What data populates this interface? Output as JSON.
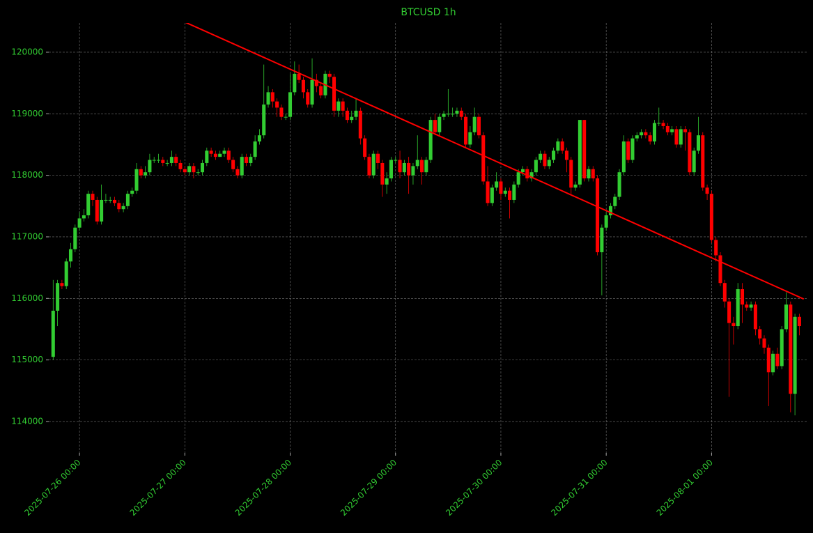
{
  "chart_data": {
    "type": "candlestick",
    "title": "BTCUSD 1h",
    "x": [
      "2025-07-25 18:00",
      "2025-07-25 19:00",
      "2025-07-25 20:00",
      "2025-07-25 21:00",
      "2025-07-25 22:00",
      "2025-07-25 23:00",
      "2025-07-26 00:00",
      "2025-07-26 01:00",
      "2025-07-26 02:00",
      "2025-07-26 03:00",
      "2025-07-26 04:00",
      "2025-07-26 05:00",
      "2025-07-26 06:00",
      "2025-07-26 07:00",
      "2025-07-26 08:00",
      "2025-07-26 09:00",
      "2025-07-26 10:00",
      "2025-07-26 11:00",
      "2025-07-26 12:00",
      "2025-07-26 13:00",
      "2025-07-26 14:00",
      "2025-07-26 15:00",
      "2025-07-26 16:00",
      "2025-07-26 17:00",
      "2025-07-26 18:00",
      "2025-07-26 19:00",
      "2025-07-26 20:00",
      "2025-07-26 21:00",
      "2025-07-26 22:00",
      "2025-07-26 23:00",
      "2025-07-27 00:00",
      "2025-07-27 01:00",
      "2025-07-27 02:00",
      "2025-07-27 03:00",
      "2025-07-27 04:00",
      "2025-07-27 05:00",
      "2025-07-27 06:00",
      "2025-07-27 07:00",
      "2025-07-27 08:00",
      "2025-07-27 09:00",
      "2025-07-27 10:00",
      "2025-07-27 11:00",
      "2025-07-27 12:00",
      "2025-07-27 13:00",
      "2025-07-27 14:00",
      "2025-07-27 15:00",
      "2025-07-27 16:00",
      "2025-07-27 17:00",
      "2025-07-27 18:00",
      "2025-07-27 19:00",
      "2025-07-27 20:00",
      "2025-07-27 21:00",
      "2025-07-27 22:00",
      "2025-07-27 23:00",
      "2025-07-28 00:00",
      "2025-07-28 01:00",
      "2025-07-28 02:00",
      "2025-07-28 03:00",
      "2025-07-28 04:00",
      "2025-07-28 05:00",
      "2025-07-28 06:00",
      "2025-07-28 07:00",
      "2025-07-28 08:00",
      "2025-07-28 09:00",
      "2025-07-28 10:00",
      "2025-07-28 11:00",
      "2025-07-28 12:00",
      "2025-07-28 13:00",
      "2025-07-28 14:00",
      "2025-07-28 15:00",
      "2025-07-28 16:00",
      "2025-07-28 17:00",
      "2025-07-28 18:00",
      "2025-07-28 19:00",
      "2025-07-28 20:00",
      "2025-07-28 21:00",
      "2025-07-28 22:00",
      "2025-07-28 23:00",
      "2025-07-29 00:00",
      "2025-07-29 01:00",
      "2025-07-29 02:00",
      "2025-07-29 03:00",
      "2025-07-29 04:00",
      "2025-07-29 05:00",
      "2025-07-29 06:00",
      "2025-07-29 07:00",
      "2025-07-29 08:00",
      "2025-07-29 09:00",
      "2025-07-29 10:00",
      "2025-07-29 11:00",
      "2025-07-29 12:00",
      "2025-07-29 13:00",
      "2025-07-29 14:00",
      "2025-07-29 15:00",
      "2025-07-29 16:00",
      "2025-07-29 17:00",
      "2025-07-29 18:00",
      "2025-07-29 19:00",
      "2025-07-29 20:00",
      "2025-07-29 21:00",
      "2025-07-29 22:00",
      "2025-07-29 23:00",
      "2025-07-30 00:00",
      "2025-07-30 01:00",
      "2025-07-30 02:00",
      "2025-07-30 03:00",
      "2025-07-30 04:00",
      "2025-07-30 05:00",
      "2025-07-30 06:00",
      "2025-07-30 07:00",
      "2025-07-30 08:00",
      "2025-07-30 09:00",
      "2025-07-30 10:00",
      "2025-07-30 11:00",
      "2025-07-30 12:00",
      "2025-07-30 13:00",
      "2025-07-30 14:00",
      "2025-07-30 15:00",
      "2025-07-30 16:00",
      "2025-07-30 17:00",
      "2025-07-30 18:00",
      "2025-07-30 19:00",
      "2025-07-30 20:00",
      "2025-07-30 21:00",
      "2025-07-30 22:00",
      "2025-07-30 23:00",
      "2025-07-31 00:00",
      "2025-07-31 01:00",
      "2025-07-31 02:00",
      "2025-07-31 03:00",
      "2025-07-31 04:00",
      "2025-07-31 05:00",
      "2025-07-31 06:00",
      "2025-07-31 07:00",
      "2025-07-31 08:00",
      "2025-07-31 09:00",
      "2025-07-31 10:00",
      "2025-07-31 11:00",
      "2025-07-31 12:00",
      "2025-07-31 13:00",
      "2025-07-31 14:00",
      "2025-07-31 15:00",
      "2025-07-31 16:00",
      "2025-07-31 17:00",
      "2025-07-31 18:00",
      "2025-07-31 19:00",
      "2025-07-31 20:00",
      "2025-07-31 21:00",
      "2025-07-31 22:00",
      "2025-07-31 23:00",
      "2025-08-01 00:00",
      "2025-08-01 01:00",
      "2025-08-01 02:00",
      "2025-08-01 03:00",
      "2025-08-01 04:00",
      "2025-08-01 05:00",
      "2025-08-01 06:00",
      "2025-08-01 07:00",
      "2025-08-01 08:00",
      "2025-08-01 09:00",
      "2025-08-01 10:00",
      "2025-08-01 11:00",
      "2025-08-01 12:00",
      "2025-08-01 13:00",
      "2025-08-01 14:00",
      "2025-08-01 15:00",
      "2025-08-01 16:00",
      "2025-08-01 17:00",
      "2025-08-01 18:00",
      "2025-08-01 19:00",
      "2025-08-01 20:00"
    ],
    "open": [
      115050,
      115800,
      116250,
      116200,
      116600,
      116800,
      117150,
      117300,
      117350,
      117700,
      117600,
      117250,
      117600,
      117600,
      117600,
      117550,
      117450,
      117500,
      117700,
      117750,
      118100,
      118000,
      118050,
      118250,
      118250,
      118250,
      118200,
      118200,
      118300,
      118200,
      118100,
      118050,
      118150,
      118050,
      118050,
      118200,
      118400,
      118350,
      118300,
      118350,
      118400,
      118250,
      118100,
      118000,
      118300,
      118200,
      118300,
      118550,
      118650,
      119150,
      119350,
      119200,
      119100,
      118950,
      118950,
      119350,
      119650,
      119550,
      119350,
      119150,
      119550,
      119450,
      119300,
      119650,
      119600,
      119050,
      119200,
      119050,
      118900,
      118950,
      119050,
      118600,
      118300,
      118000,
      118350,
      118200,
      117850,
      117950,
      118250,
      118250,
      118050,
      118200,
      118000,
      118150,
      118250,
      118050,
      118250,
      118900,
      118700,
      118950,
      119000,
      119000,
      119000,
      119050,
      118950,
      118500,
      118700,
      118950,
      118650,
      117900,
      117550,
      117800,
      117900,
      117700,
      117750,
      117600,
      117850,
      118050,
      118100,
      117950,
      118050,
      118250,
      118350,
      118150,
      118250,
      118400,
      118550,
      118400,
      118250,
      117800,
      117850,
      118900,
      117950,
      118100,
      117950,
      116750,
      117150,
      117350,
      117500,
      117650,
      118050,
      118550,
      118250,
      118600,
      118650,
      118700,
      118650,
      118550,
      118850,
      118850,
      118800,
      118700,
      118750,
      118500,
      118750,
      118700,
      118050,
      118400,
      118650,
      117800,
      117700,
      116950,
      116700,
      116250,
      115950,
      115600,
      115550,
      116150,
      115900,
      115850,
      115900,
      115500,
      115350,
      115200,
      114800,
      115100,
      114900,
      115500,
      115900,
      114450,
      115700
    ],
    "high": [
      116300,
      116300,
      116300,
      116650,
      116900,
      117200,
      117400,
      117450,
      117750,
      117750,
      117650,
      117850,
      117700,
      117650,
      117650,
      117600,
      117550,
      117750,
      117800,
      118200,
      118150,
      118150,
      118350,
      118300,
      118350,
      118300,
      118250,
      118400,
      118350,
      118250,
      118150,
      118200,
      118200,
      118100,
      118250,
      118450,
      118450,
      118400,
      118400,
      118450,
      118450,
      118300,
      118150,
      118350,
      118350,
      118350,
      118650,
      118750,
      119800,
      119450,
      119400,
      119250,
      119150,
      119000,
      119650,
      119850,
      119800,
      119600,
      119400,
      119900,
      119650,
      119500,
      119700,
      119700,
      119650,
      119250,
      119250,
      119100,
      119050,
      119250,
      119100,
      118650,
      118350,
      118400,
      118400,
      118250,
      118050,
      118300,
      118300,
      118400,
      118250,
      118300,
      118200,
      118650,
      118300,
      118300,
      118950,
      119000,
      119000,
      119050,
      119400,
      119100,
      119100,
      119100,
      119000,
      118800,
      119100,
      119000,
      118700,
      118150,
      117850,
      118050,
      117950,
      117800,
      117800,
      117900,
      118100,
      118150,
      118150,
      118100,
      118300,
      118400,
      118400,
      118300,
      118450,
      118600,
      118600,
      118450,
      118300,
      117900,
      118900,
      118900,
      118150,
      118150,
      118000,
      117200,
      117400,
      117550,
      117700,
      118100,
      118650,
      118600,
      118650,
      118700,
      118750,
      118750,
      118700,
      118900,
      119100,
      118900,
      118850,
      118800,
      118800,
      118800,
      118800,
      118750,
      118450,
      118950,
      118700,
      117850,
      117750,
      117000,
      116750,
      116300,
      116000,
      115700,
      116250,
      116250,
      115950,
      115950,
      115950,
      115550,
      115400,
      115250,
      115150,
      115200,
      115550,
      116100,
      115950,
      115750,
      115750
    ],
    "low": [
      115000,
      115550,
      116150,
      116150,
      116500,
      116750,
      117100,
      117250,
      117300,
      117500,
      117200,
      117200,
      117550,
      117550,
      117500,
      117400,
      117400,
      117450,
      117650,
      117700,
      117950,
      117950,
      118000,
      118200,
      118200,
      118150,
      118150,
      118150,
      118150,
      118050,
      118000,
      118000,
      117950,
      118000,
      118000,
      118150,
      118300,
      118250,
      118300,
      118300,
      118200,
      118050,
      117950,
      117950,
      118150,
      118150,
      118250,
      118500,
      118600,
      119100,
      119100,
      118950,
      118900,
      118900,
      118900,
      119300,
      119500,
      119250,
      119100,
      119100,
      119350,
      119250,
      119250,
      119500,
      118950,
      118950,
      118950,
      118850,
      118850,
      118900,
      118500,
      118250,
      117950,
      117950,
      118100,
      117650,
      117700,
      117900,
      118200,
      117950,
      118000,
      117700,
      117850,
      118100,
      117850,
      118000,
      118200,
      118650,
      118650,
      118900,
      118950,
      118950,
      118950,
      118900,
      118450,
      118450,
      118650,
      118600,
      117850,
      117500,
      117500,
      117750,
      117600,
      117650,
      117300,
      117550,
      117800,
      118000,
      117900,
      117900,
      118000,
      118200,
      118100,
      118100,
      118200,
      118350,
      118350,
      118050,
      117700,
      117750,
      117800,
      117900,
      117900,
      117900,
      116700,
      116050,
      117100,
      117300,
      117450,
      117600,
      118000,
      118200,
      118200,
      118550,
      118600,
      118600,
      118500,
      118500,
      118800,
      118750,
      118650,
      118650,
      118450,
      118450,
      118400,
      118000,
      118000,
      118350,
      117750,
      117600,
      116900,
      116600,
      116200,
      115850,
      114400,
      115250,
      115500,
      115600,
      115800,
      115800,
      115400,
      115250,
      115100,
      114250,
      114750,
      114850,
      114850,
      115450,
      114150,
      114100,
      115400
    ],
    "close": [
      115800,
      116250,
      116200,
      116600,
      116800,
      117150,
      117300,
      117350,
      117700,
      117600,
      117250,
      117600,
      117600,
      117600,
      117550,
      117450,
      117500,
      117700,
      117750,
      118100,
      118000,
      118050,
      118250,
      118250,
      118250,
      118200,
      118200,
      118300,
      118200,
      118100,
      118050,
      118150,
      118050,
      118050,
      118200,
      118400,
      118350,
      118300,
      118350,
      118400,
      118250,
      118100,
      118000,
      118300,
      118200,
      118300,
      118550,
      118650,
      119150,
      119350,
      119200,
      119100,
      118950,
      118950,
      119350,
      119650,
      119550,
      119350,
      119150,
      119550,
      119450,
      119300,
      119650,
      119600,
      119050,
      119200,
      119050,
      118900,
      118950,
      119050,
      118600,
      118300,
      118000,
      118350,
      118200,
      117850,
      117950,
      118250,
      118250,
      118050,
      118200,
      118000,
      118150,
      118250,
      118050,
      118250,
      118900,
      118700,
      118950,
      119000,
      119000,
      119000,
      119050,
      118950,
      118500,
      118700,
      118950,
      118650,
      117900,
      117550,
      117800,
      117900,
      117700,
      117750,
      117600,
      117850,
      118050,
      118100,
      117950,
      118050,
      118250,
      118350,
      118150,
      118250,
      118400,
      118550,
      118400,
      118250,
      117800,
      117850,
      118900,
      117950,
      118100,
      117950,
      116750,
      117150,
      117350,
      117500,
      117650,
      118050,
      118550,
      118250,
      118600,
      118650,
      118700,
      118650,
      118550,
      118850,
      118850,
      118800,
      118700,
      118750,
      118500,
      118750,
      118700,
      118050,
      118400,
      118650,
      117800,
      117700,
      116950,
      116700,
      116250,
      115950,
      115600,
      115550,
      116150,
      115900,
      115850,
      115900,
      115500,
      115350,
      115200,
      114800,
      115100,
      114900,
      115500,
      115900,
      114450,
      115700,
      115550
    ],
    "up_color": "#32cd32",
    "down_color": "#ff0000",
    "trendline": {
      "x": [
        "2025-07-27 00:00",
        "2025-08-01 21:00"
      ],
      "values": [
        120490,
        115990
      ],
      "color": "#ff0000"
    },
    "xlim": [
      "2025-07-25 17:00",
      "2025-08-01 22:00"
    ],
    "xticks": [
      "2025-07-26 00:00",
      "2025-07-27 00:00",
      "2025-07-28 00:00",
      "2025-07-29 00:00",
      "2025-07-30 00:00",
      "2025-07-31 00:00",
      "2025-08-01 00:00"
    ],
    "ylim": [
      113490,
      120475
    ],
    "yticks": [
      114000,
      115000,
      116000,
      117000,
      118000,
      119000,
      120000
    ],
    "grid": true
  }
}
